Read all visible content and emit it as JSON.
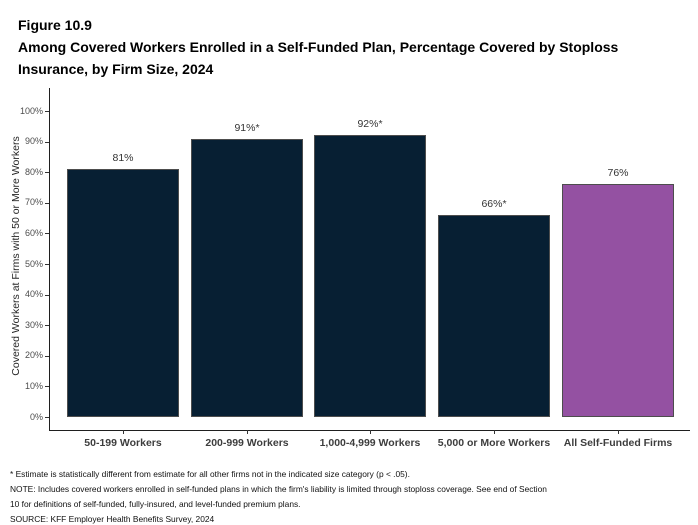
{
  "figure": {
    "number": "Figure 10.9",
    "title_lines": [
      "Among Covered Workers Enrolled in a Self-Funded Plan, Percentage Covered by Stoploss",
      "Insurance, by Firm Size, 2024"
    ]
  },
  "chart_data": {
    "type": "bar",
    "title": "Figure 10.9: Among Covered Workers Enrolled in a Self-Funded Plan, Percentage Covered by Stoploss Insurance, by Firm Size, 2024",
    "categories": [
      "50-199 Workers",
      "200-999 Workers",
      "1,000-4,999 Workers",
      "5,000 or More Workers",
      "All Self-Funded Firms"
    ],
    "values": [
      81,
      91,
      92,
      66,
      76
    ],
    "bar_labels": [
      "81%",
      "91%*",
      "92%*",
      "66%*",
      "76%"
    ],
    "xlabel": "",
    "ylabel": "Covered Workers at Firms with 50 or More Workers",
    "ylim": [
      0,
      100
    ],
    "ytick_step": 10,
    "ytick_labels": [
      "0%",
      "10%",
      "20%",
      "30%",
      "40%",
      "50%",
      "60%",
      "70%",
      "80%",
      "90%",
      "100%"
    ],
    "grid": false,
    "legend": "none",
    "colors": {
      "bar_default": "#071f33",
      "bar_highlight": "#9451a2",
      "bar_border": "#4d4d4d",
      "highlight_index": 4
    }
  },
  "footnotes": {
    "star_note": "* Estimate is statistically different from estimate for all other firms not in the indicated size category (p < .05).",
    "note_lines": [
      "NOTE: Includes covered workers enrolled in self-funded plans in which the firm's liability is limited through stoploss coverage. See end of Section",
      "10 for definitions of self-funded, fully-insured, and level-funded premium plans."
    ],
    "source": "SOURCE: KFF Employer Health Benefits Survey, 2024"
  }
}
